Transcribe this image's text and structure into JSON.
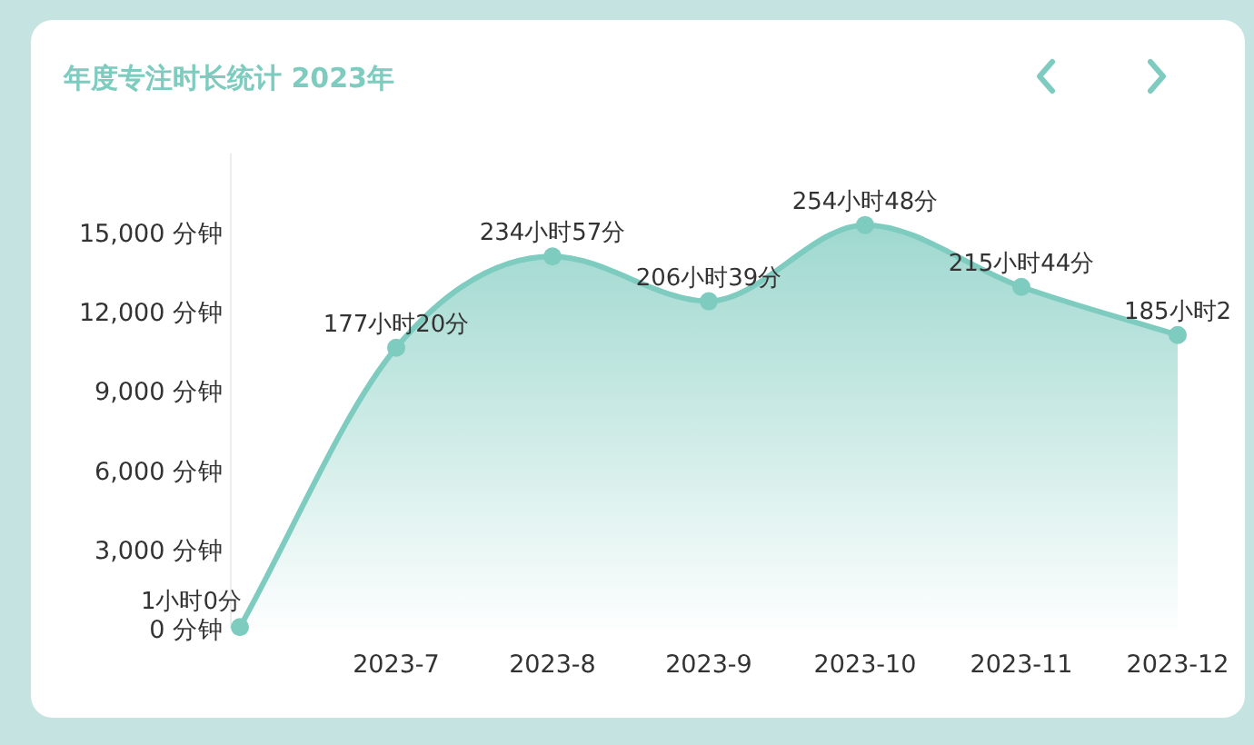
{
  "chart_data": {
    "type": "area",
    "title": "年度专注时长统计  2023年",
    "categories": [
      null,
      "2023-7",
      "2023-8",
      "2023-9",
      "2023-10",
      "2023-11",
      "2023-12"
    ],
    "values": [
      60,
      10640,
      14097,
      12399,
      15288,
      12944,
      11120
    ],
    "annotations": [
      "1小时0分",
      {
        "text": "177小时20分",
        "x": "2023-7",
        "y": 10640
      },
      {
        "text": "234小时57分",
        "x": "2023-8",
        "y": 14097
      },
      {
        "text": "206小时39分",
        "x": "2023-9",
        "y": 12399
      },
      {
        "text": "254小时48分",
        "x": "2023-10",
        "y": 15288
      },
      {
        "text": "215小时44分",
        "x": "2023-11",
        "y": 12944
      },
      {
        "text": "185小时2",
        "x": "2023-12",
        "y": 11120
      }
    ],
    "color": "#7ecbbf",
    "marker": "circle",
    "grid": false,
    "ylim": [
      0,
      18000
    ],
    "yticks": [
      {
        "value": 0,
        "label": "0 分钟"
      },
      {
        "value": 3000,
        "label": "3,000 分钟"
      },
      {
        "value": 6000,
        "label": "6,000 分钟"
      },
      {
        "value": 9000,
        "label": "9,000 分钟"
      },
      {
        "value": 12000,
        "label": "12,000 分钟"
      },
      {
        "value": 15000,
        "label": "15,000 分钟"
      }
    ]
  }
}
